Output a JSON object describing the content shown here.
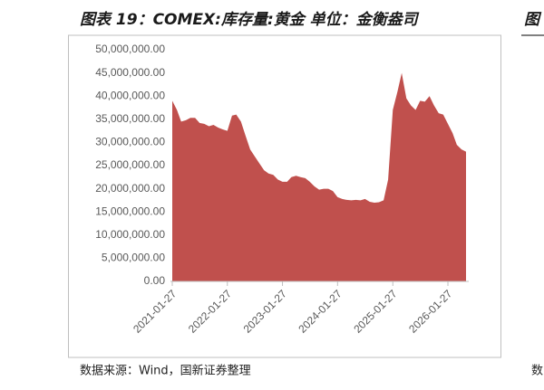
{
  "chart_data": {
    "type": "area",
    "title": "图表 19：COMEX:库存量:黄金 单位：金衡盎司",
    "source": "数据来源：Wind，国新证券整理",
    "color": "#c0504d",
    "x": [
      "2021-01-27",
      "2021-02-27",
      "2021-03-27",
      "2021-04-27",
      "2021-05-27",
      "2021-06-27",
      "2021-07-27",
      "2021-08-27",
      "2021-09-27",
      "2021-10-27",
      "2021-11-27",
      "2021-12-27",
      "2022-01-27",
      "2022-02-27",
      "2022-03-27",
      "2022-04-27",
      "2022-05-27",
      "2022-06-27",
      "2022-07-27",
      "2022-08-27",
      "2022-09-27",
      "2022-10-27",
      "2022-11-27",
      "2022-12-27",
      "2023-01-27",
      "2023-02-27",
      "2023-03-27",
      "2023-04-27",
      "2023-05-27",
      "2023-06-27",
      "2023-07-27",
      "2023-08-27",
      "2023-09-27",
      "2023-10-27",
      "2023-11-27",
      "2023-12-27",
      "2024-01-27",
      "2024-02-27",
      "2024-03-27",
      "2024-04-27",
      "2024-05-27",
      "2024-06-27",
      "2024-07-27",
      "2024-08-27",
      "2024-09-27",
      "2024-10-27",
      "2024-11-27",
      "2024-12-27",
      "2025-01-27",
      "2025-02-27",
      "2025-03-27",
      "2025-04-27",
      "2025-05-27",
      "2025-06-27",
      "2025-07-27",
      "2025-08-27",
      "2025-09-27",
      "2025-10-27",
      "2025-11-27",
      "2025-12-27",
      "2026-01-27",
      "2026-02-27",
      "2026-03-27",
      "2026-04-27",
      "2026-05-27"
    ],
    "values": [
      39000000,
      37000000,
      34500000,
      34800000,
      35300000,
      35300000,
      34200000,
      34000000,
      33500000,
      33800000,
      33200000,
      32800000,
      32500000,
      35800000,
      36000000,
      34500000,
      31500000,
      28500000,
      27000000,
      25500000,
      24000000,
      23300000,
      23000000,
      22000000,
      21500000,
      21500000,
      22500000,
      22800000,
      22500000,
      22300000,
      21500000,
      20500000,
      19800000,
      20000000,
      20000000,
      19500000,
      18200000,
      17800000,
      17600000,
      17500000,
      17600000,
      17500000,
      17800000,
      17200000,
      17000000,
      17100000,
      17500000,
      22000000,
      37000000,
      41000000,
      45000000,
      39500000,
      38000000,
      37000000,
      39000000,
      38800000,
      40000000,
      38000000,
      36300000,
      36000000,
      34000000,
      32000000,
      29500000,
      28500000,
      28000000
    ],
    "xlim": [
      "2021-01-27",
      "2026-05-27"
    ],
    "xticks": [
      "2021-01-27",
      "2022-01-27",
      "2023-01-27",
      "2024-01-27",
      "2025-01-27",
      "2026-01-27"
    ],
    "ylim": [
      0,
      50000000
    ],
    "yticks": [
      {
        "value": 0,
        "label": "0.00"
      },
      {
        "value": 5000000,
        "label": "5,000,000.00"
      },
      {
        "value": 10000000,
        "label": "10,000,000.00"
      },
      {
        "value": 15000000,
        "label": "15,000,000.00"
      },
      {
        "value": 20000000,
        "label": "20,000,000.00"
      },
      {
        "value": 25000000,
        "label": "25,000,000.00"
      },
      {
        "value": 30000000,
        "label": "30,000,000.00"
      },
      {
        "value": 35000000,
        "label": "35,000,000.00"
      },
      {
        "value": 40000000,
        "label": "40,000,000.00"
      },
      {
        "value": 45000000,
        "label": "45,000,000.00"
      },
      {
        "value": 50000000,
        "label": "50,000,000.00"
      }
    ],
    "grid": false
  },
  "neighbor_panel": {
    "title": "图",
    "source": "数"
  }
}
